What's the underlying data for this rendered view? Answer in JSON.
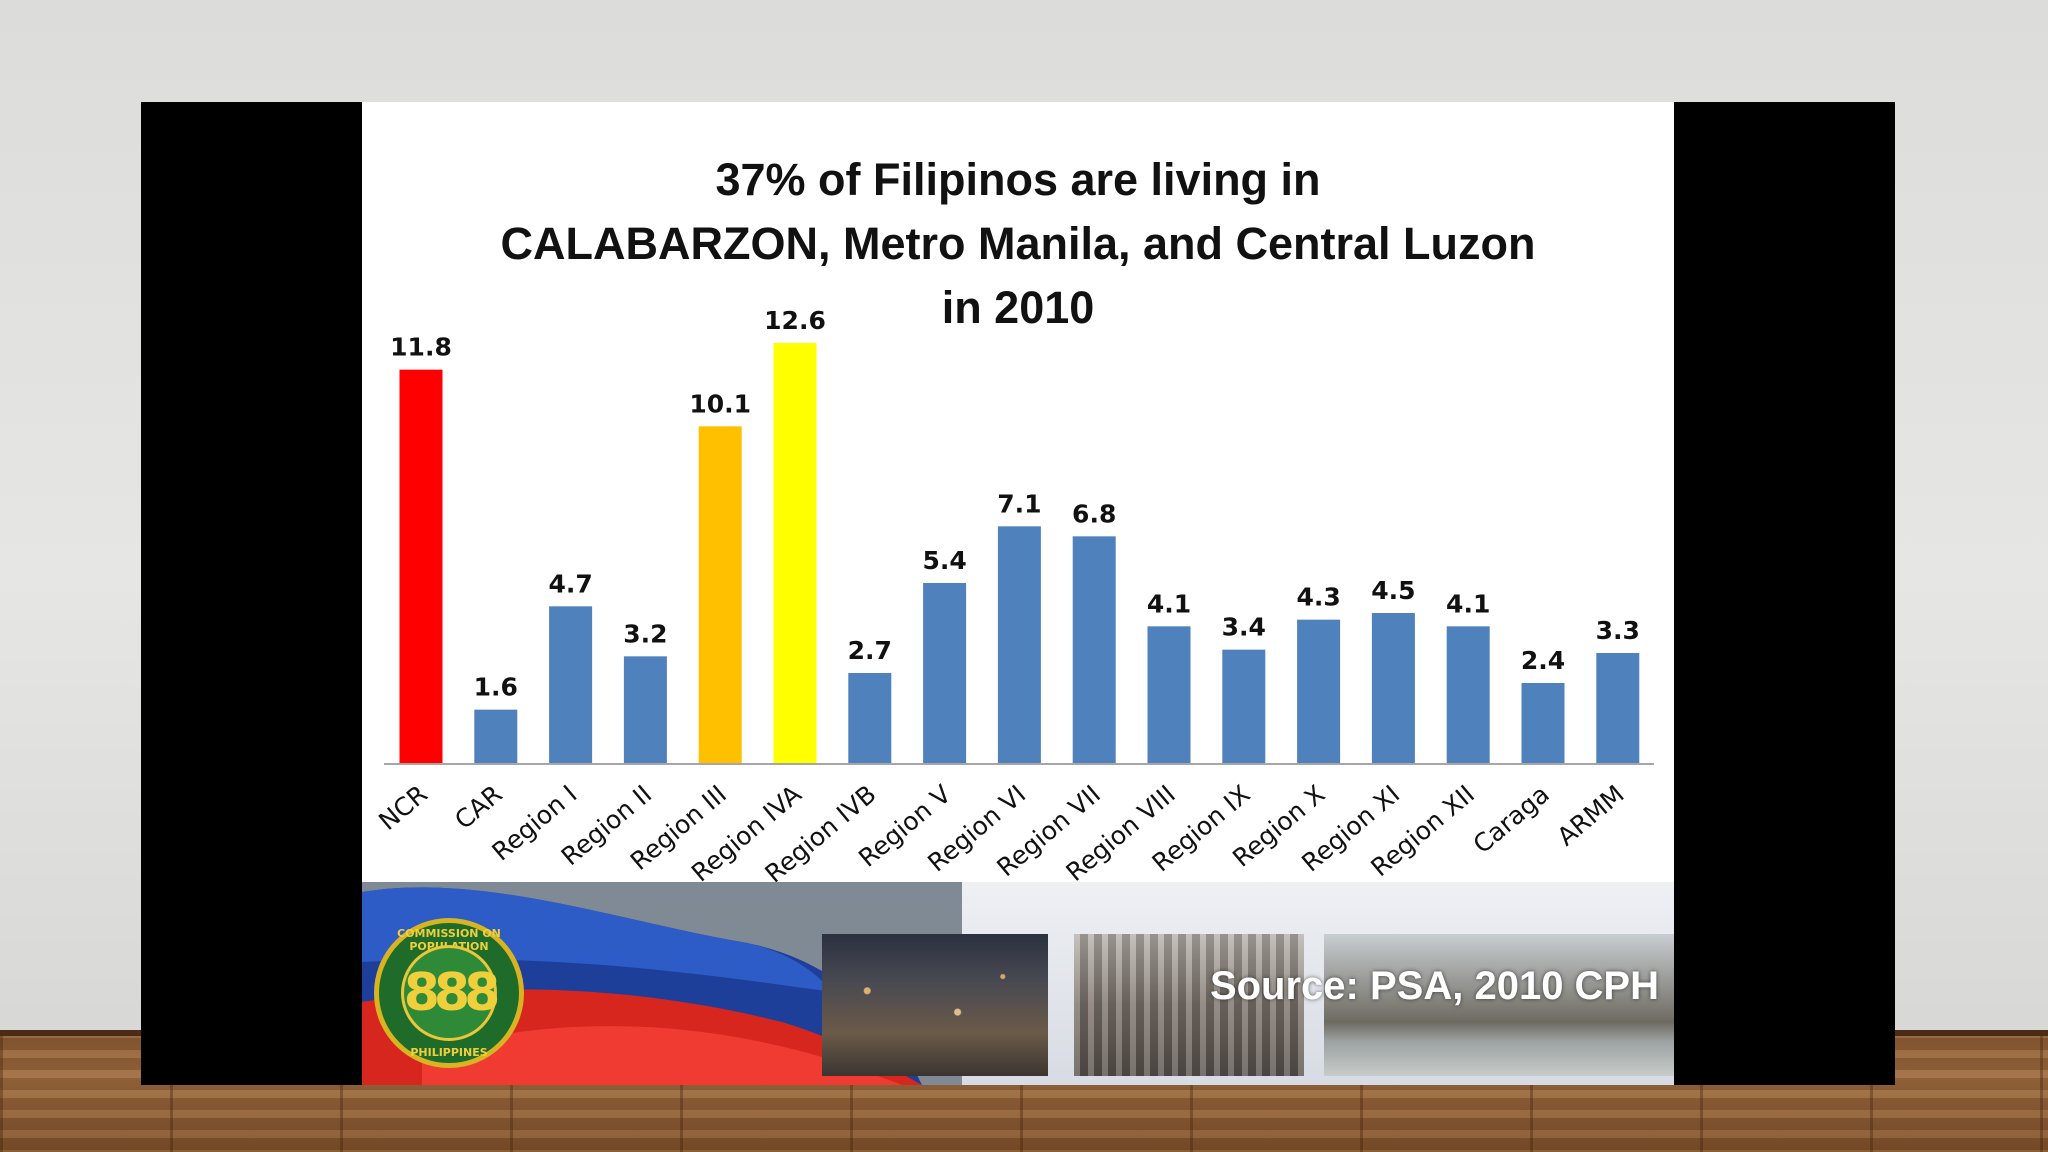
{
  "slide": {
    "title_lines": [
      "37% of Filipinos are living in",
      "CALABARZON, Metro Manila, and Central Luzon",
      "in 2010"
    ],
    "source": "Source: PSA, 2010 CPH",
    "logo": {
      "text_top": "COMMISSION ON POPULATION",
      "text_bottom": "PHILIPPINES",
      "mark": "888"
    }
  },
  "chart_data": {
    "type": "bar",
    "title": "37% of Filipinos are living in CALABARZON, Metro Manila, and Central Luzon in 2010",
    "xlabel": "",
    "ylabel": "",
    "ylim": [
      0,
      12.6
    ],
    "grid": false,
    "legend": "none",
    "categories": [
      "NCR",
      "CAR",
      "Region I",
      "Region II",
      "Region III",
      "Region IVA",
      "Region IVB",
      "Region V",
      "Region VI",
      "Region VII",
      "Region VIII",
      "Region IX",
      "Region X",
      "Region XI",
      "Region XII",
      "Caraga",
      "ARMM"
    ],
    "values": [
      11.8,
      1.6,
      4.7,
      3.2,
      10.1,
      12.6,
      2.7,
      5.4,
      7.1,
      6.8,
      4.1,
      3.4,
      4.3,
      4.5,
      4.1,
      2.4,
      3.3
    ],
    "value_labels": [
      "11.8",
      "1.6",
      "4.7",
      "3.2",
      "10.1",
      "12.6",
      "2.7",
      "5.4",
      "7.1",
      "6.8",
      "4.1",
      "3.4",
      "4.3",
      "4.5",
      "4.1",
      "2.4",
      "3.3"
    ],
    "bar_colors": [
      "#ff0000",
      "#4f81bd",
      "#4f81bd",
      "#4f81bd",
      "#ffc000",
      "#ffff00",
      "#4f81bd",
      "#4f81bd",
      "#4f81bd",
      "#4f81bd",
      "#4f81bd",
      "#4f81bd",
      "#4f81bd",
      "#4f81bd",
      "#4f81bd",
      "#4f81bd",
      "#4f81bd"
    ]
  }
}
